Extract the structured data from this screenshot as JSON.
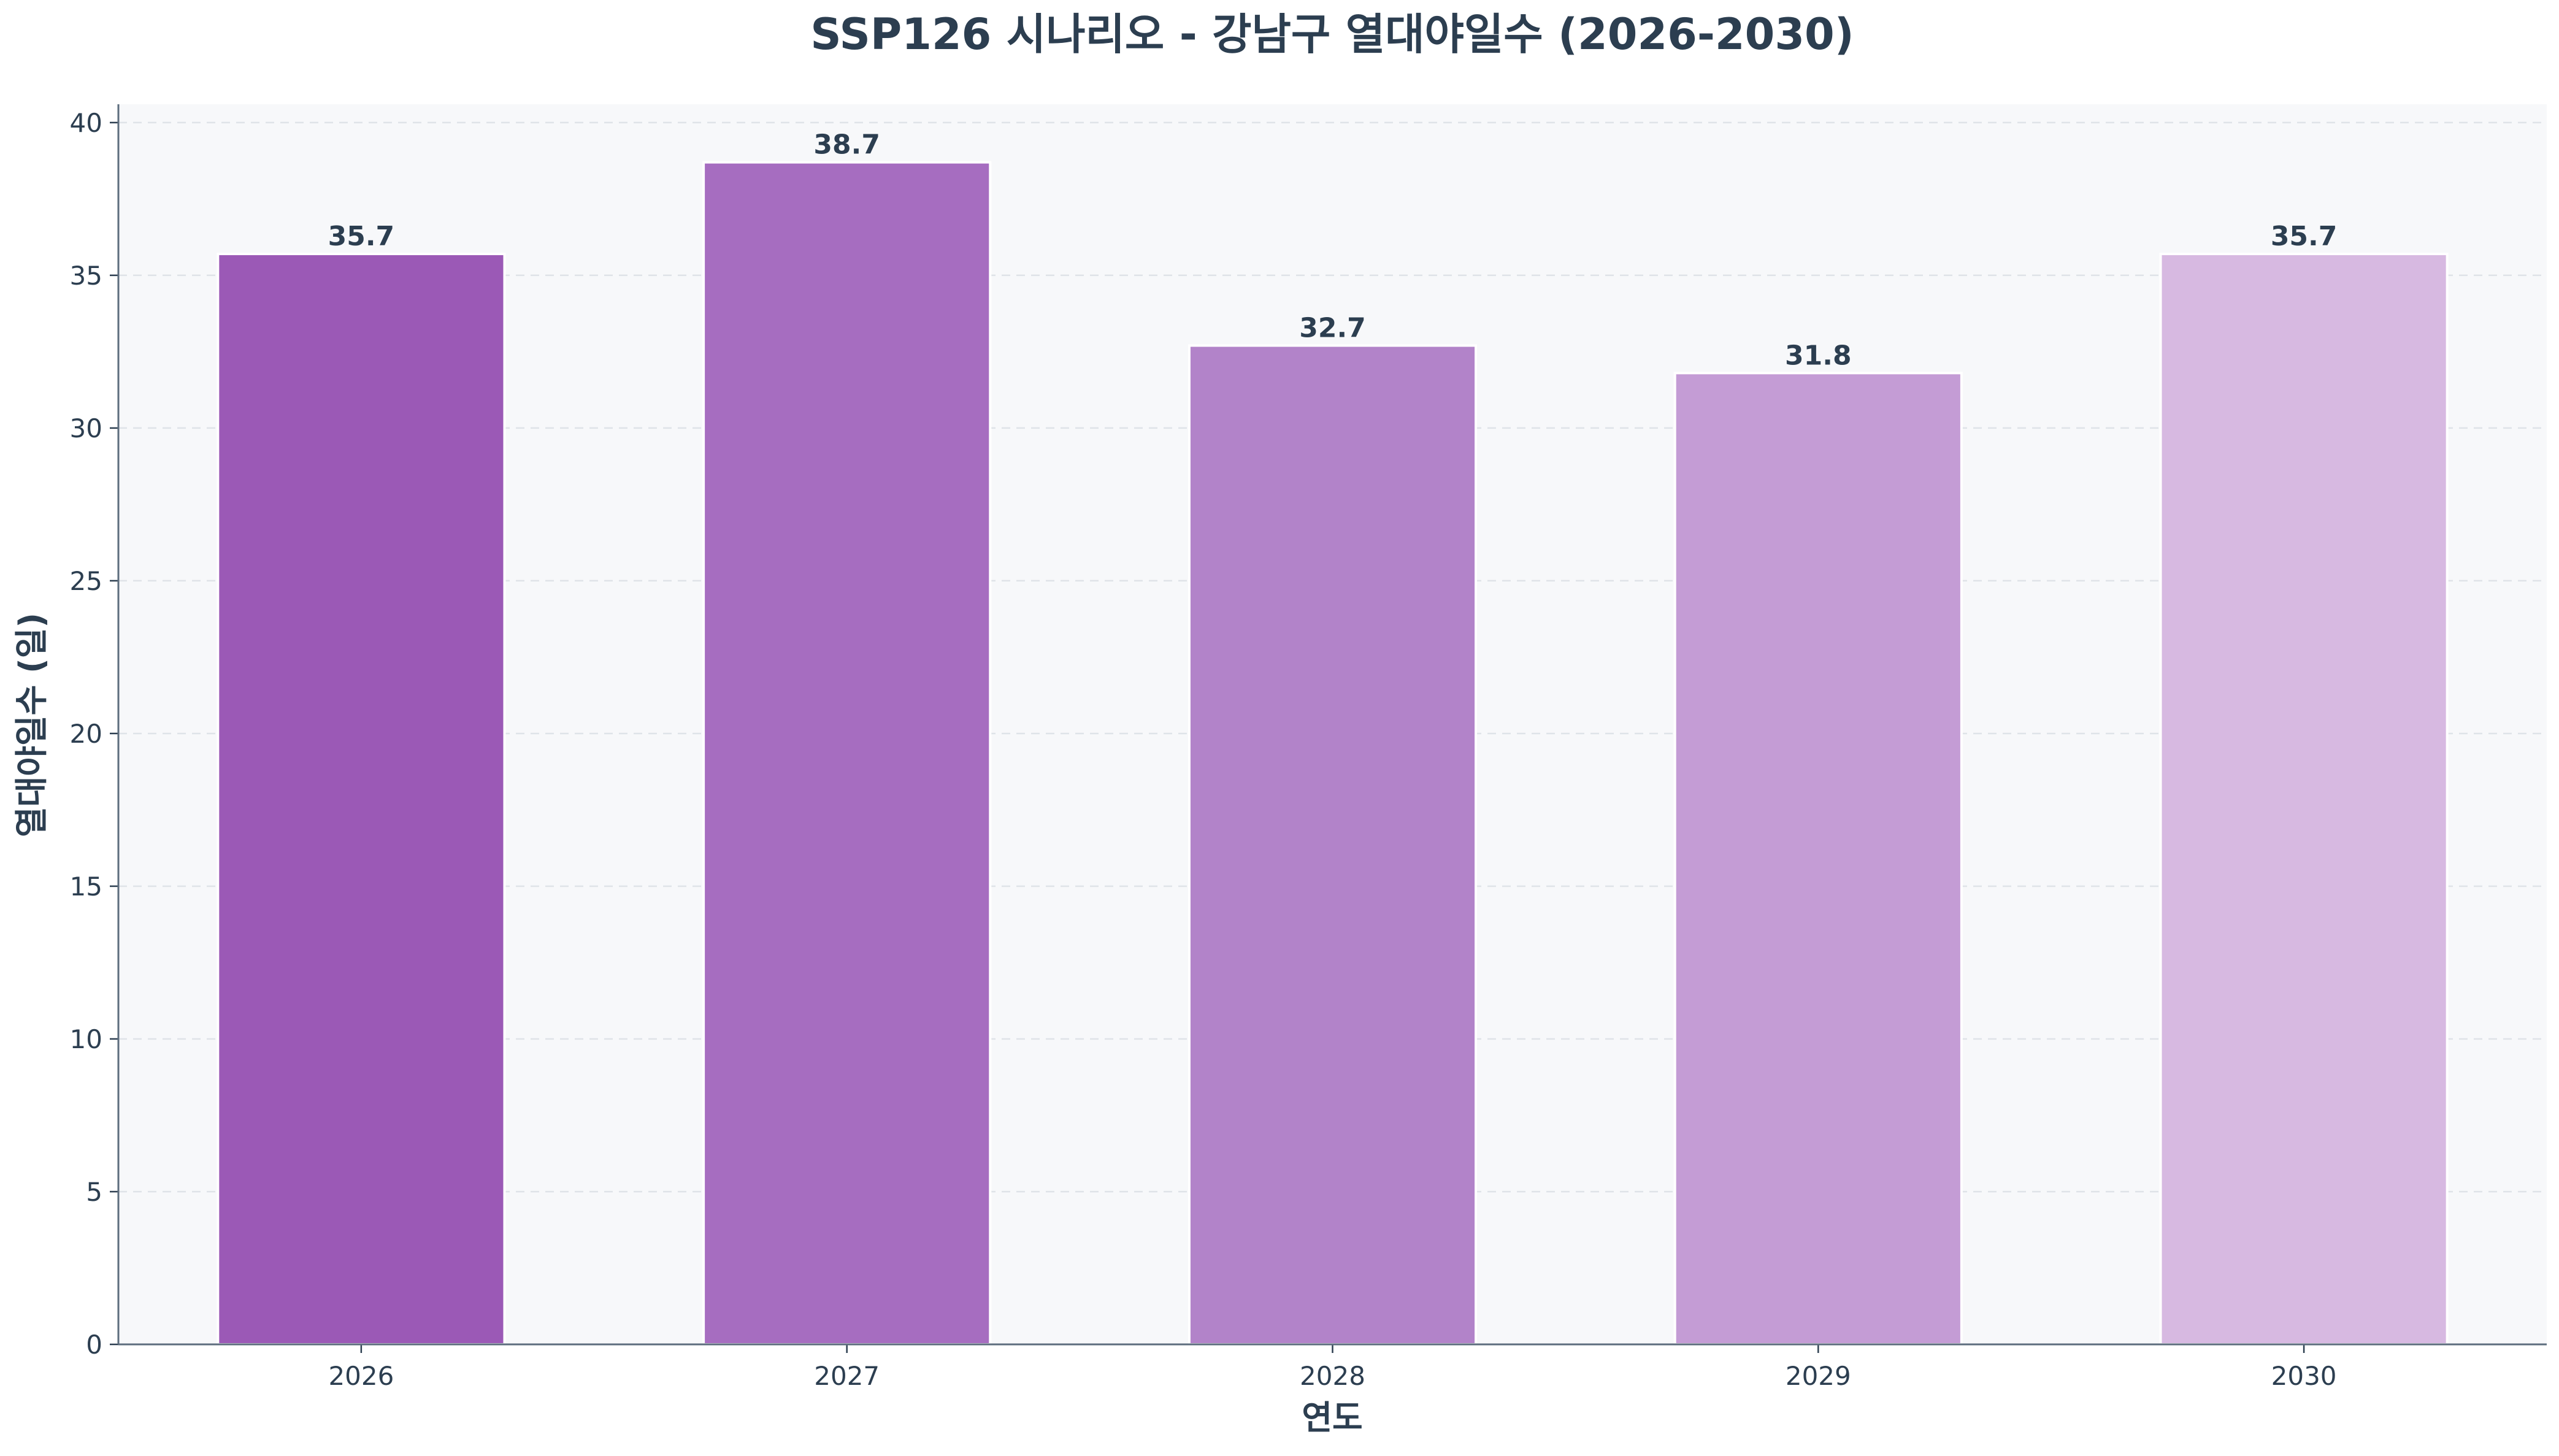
{
  "chart_data": {
    "type": "bar",
    "title": "SSP126 시나리오 - 강남구 열대야일수 (2026-2030)",
    "xlabel": "연도",
    "ylabel": "열대야일수 (일)",
    "categories": [
      "2026",
      "2027",
      "2028",
      "2029",
      "2030"
    ],
    "values": [
      35.7,
      38.7,
      32.7,
      31.8,
      35.7
    ],
    "data_labels": [
      "35.7",
      "38.7",
      "32.7",
      "31.8",
      "35.7"
    ],
    "ylim": [
      0,
      40.6
    ],
    "yticks": [
      0,
      5,
      10,
      15,
      20,
      25,
      30,
      35,
      40
    ],
    "grid": true,
    "bar_colors": [
      "#9b59b6",
      "#a66dc0",
      "#b283c9",
      "#c49cd5",
      "#d7b9e1"
    ],
    "plot_background": "#f7f8fa"
  }
}
